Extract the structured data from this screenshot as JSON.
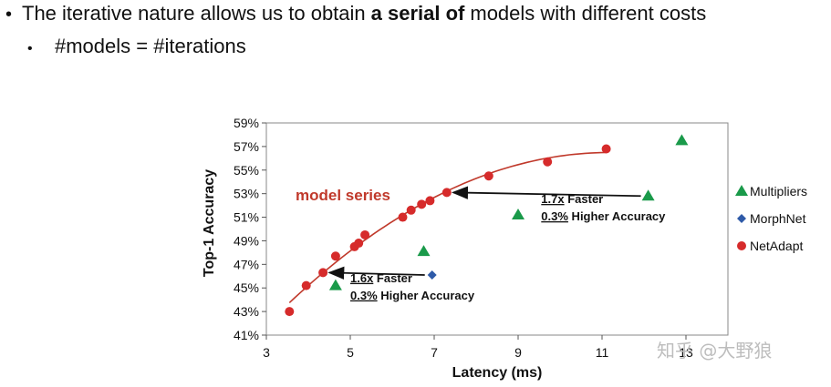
{
  "slide": {
    "bullet1_prefix": "The iterative nature allows us to obtain ",
    "bullet1_bold": "a serial of",
    "bullet1_suffix": " models with different costs",
    "bullet2": "#models = #iterations",
    "watermark": "知乎 @大野狼"
  },
  "chart_data": {
    "type": "scatter",
    "xlabel": "Latency (ms)",
    "ylabel": "Top-1 Accuracy",
    "xlim": [
      3,
      14
    ],
    "ylim": [
      41,
      59
    ],
    "x_ticks": [
      3,
      5,
      7,
      9,
      11,
      13
    ],
    "y_ticks": [
      "41%",
      "43%",
      "45%",
      "47%",
      "49%",
      "51%",
      "53%",
      "55%",
      "57%",
      "59%"
    ],
    "series": [
      {
        "name": "Multipliers",
        "marker": "triangle",
        "color": "#1a9a4a",
        "points": [
          [
            4.65,
            45.2
          ],
          [
            6.75,
            48.1
          ],
          [
            9.0,
            51.2
          ],
          [
            12.1,
            52.8
          ],
          [
            12.9,
            57.5
          ]
        ]
      },
      {
        "name": "MorphNet",
        "marker": "diamond",
        "color": "#2e5aa8",
        "points": [
          [
            6.95,
            46.1
          ]
        ]
      },
      {
        "name": "NetAdapt",
        "marker": "circle",
        "color": "#d62b2b",
        "points": [
          [
            3.55,
            43.0
          ],
          [
            3.95,
            45.2
          ],
          [
            4.35,
            46.3
          ],
          [
            4.65,
            47.7
          ],
          [
            5.1,
            48.5
          ],
          [
            5.2,
            48.8
          ],
          [
            5.35,
            49.5
          ],
          [
            6.25,
            51.0
          ],
          [
            6.45,
            51.6
          ],
          [
            6.7,
            52.1
          ],
          [
            6.9,
            52.4
          ],
          [
            7.3,
            53.1
          ],
          [
            8.3,
            54.5
          ],
          [
            9.7,
            55.7
          ],
          [
            11.1,
            56.8
          ]
        ]
      }
    ],
    "fit_curve_color": "#c0392b",
    "series_label": "model series",
    "legend_position": "right",
    "annotations": [
      {
        "speed": "1.7x",
        "speed_suffix": " Faster",
        "acc": "0.3%",
        "acc_suffix": " Higher Accuracy",
        "arrow_from": [
          12.1,
          52.8
        ],
        "arrow_to": [
          7.3,
          53.1
        ],
        "text_at": [
          9.55,
          52.2
        ]
      },
      {
        "speed": "1.6x",
        "speed_suffix": " Faster",
        "acc": "0.3%",
        "acc_suffix": " Higher Accuracy",
        "arrow_from": [
          6.95,
          46.1
        ],
        "arrow_to": [
          4.35,
          46.3
        ],
        "text_at": [
          5.0,
          45.5
        ]
      }
    ]
  }
}
